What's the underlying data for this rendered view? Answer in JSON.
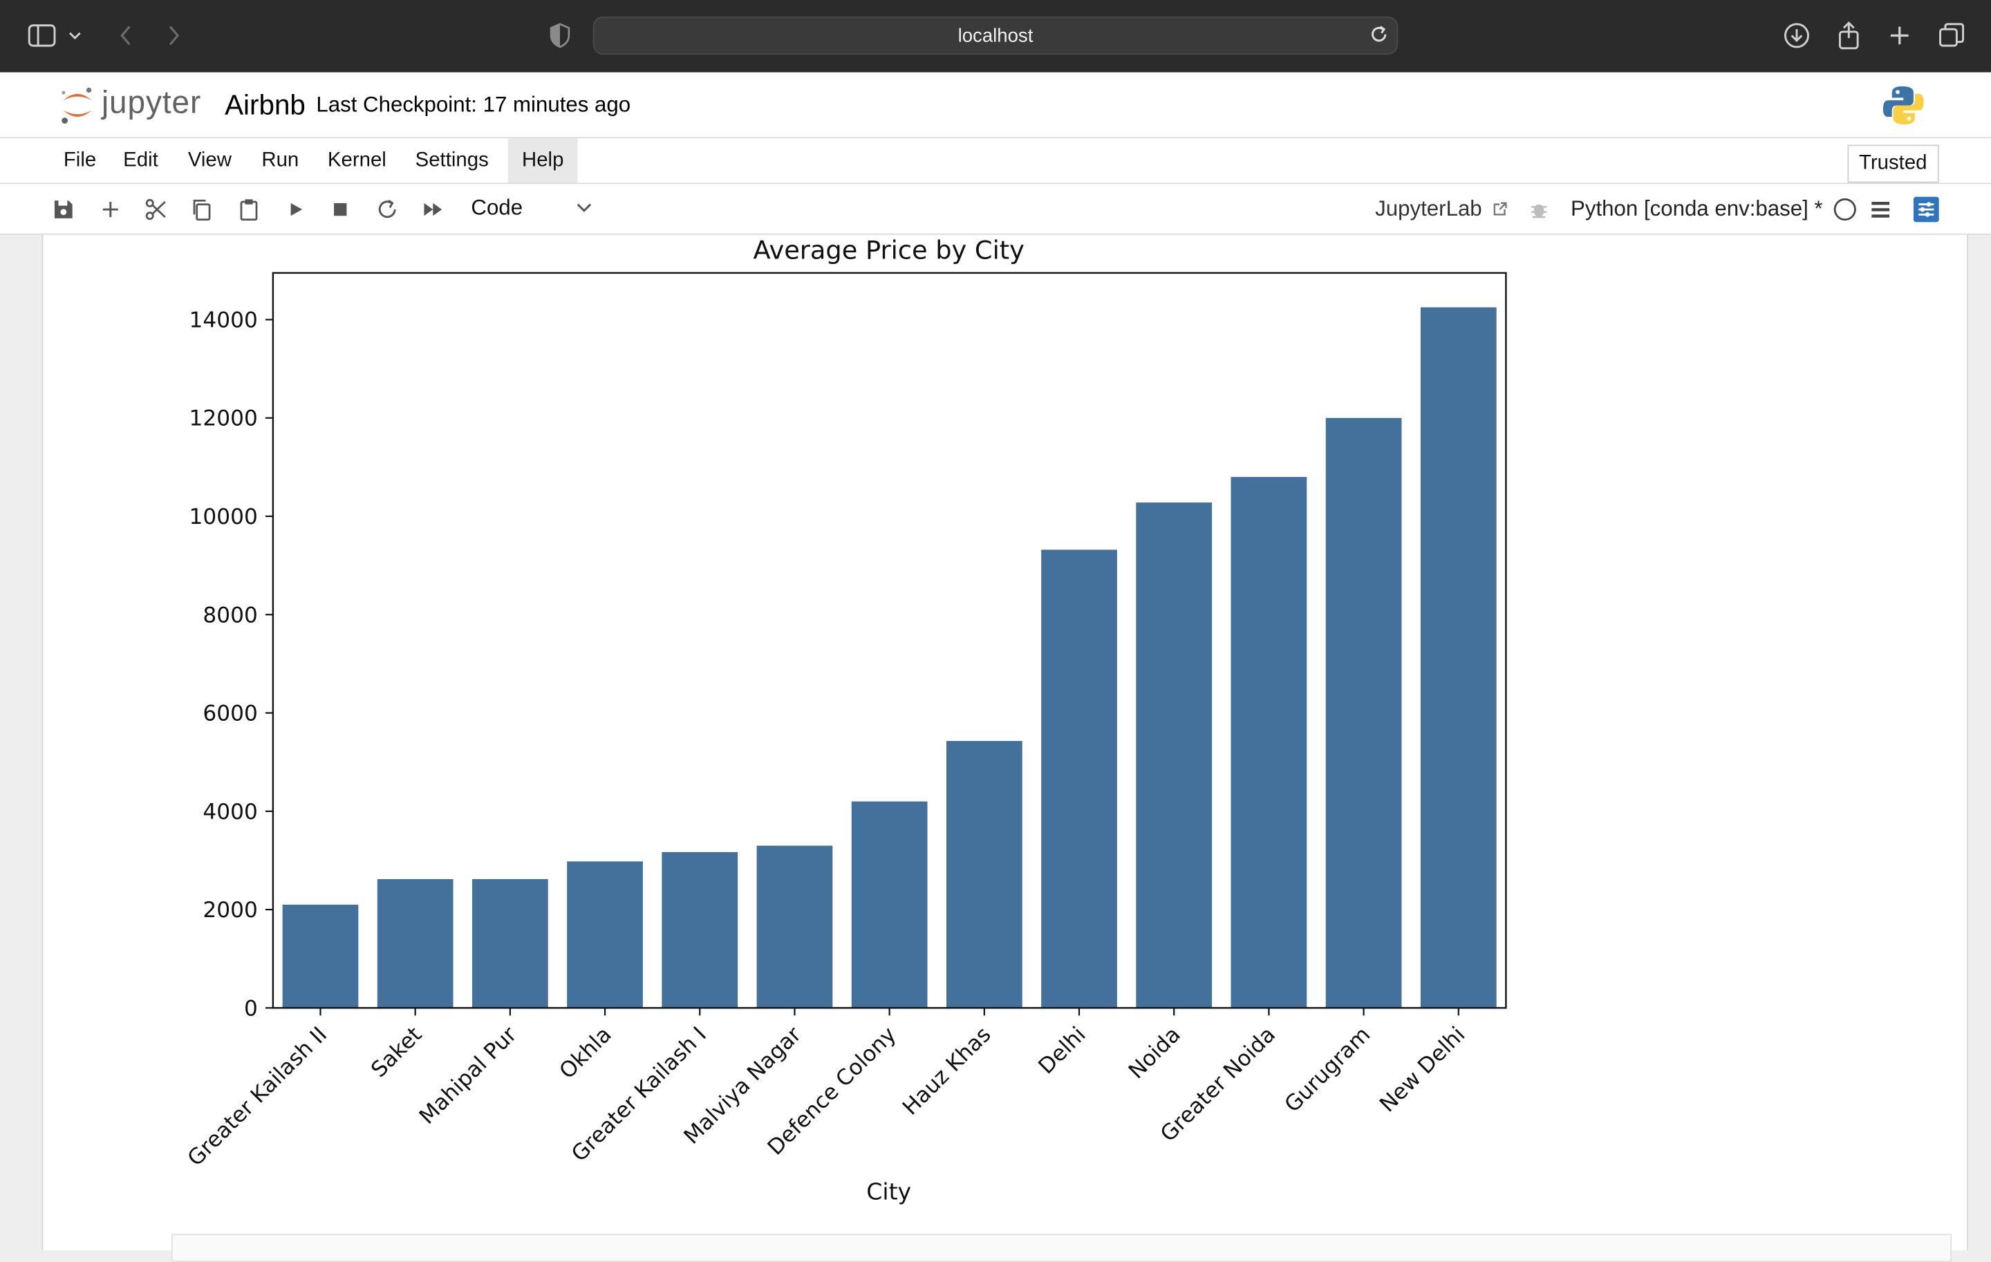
{
  "browser": {
    "url": "localhost",
    "icons": [
      "sidebar-icon",
      "chevron-down-icon",
      "back-arrow-icon",
      "forward-arrow-icon",
      "privacy-shield-icon",
      "reload-icon",
      "download-icon",
      "share-icon",
      "new-tab-icon",
      "tab-overview-icon"
    ]
  },
  "header": {
    "logo_text": "jupyter",
    "notebook_title": "Airbnb",
    "checkpoint": "Last Checkpoint: 17 minutes ago"
  },
  "menu": {
    "items": [
      "File",
      "Edit",
      "View",
      "Run",
      "Kernel",
      "Settings",
      "Help"
    ],
    "active": "Help",
    "trusted_label": "Trusted"
  },
  "toolbar": {
    "cell_type": "Code",
    "jupyterlab_label": "JupyterLab",
    "kernel_label": "Python [conda env:base] *",
    "icons": [
      "save-icon",
      "add-cell-icon",
      "cut-icon",
      "copy-icon",
      "paste-icon",
      "run-icon",
      "stop-icon",
      "restart-icon",
      "fast-forward-icon"
    ]
  },
  "chart_data": {
    "type": "bar",
    "title": "Average Price by City",
    "xlabel": "City",
    "ylabel": "",
    "categories": [
      "Greater Kailash II",
      "Saket",
      "Mahipal Pur",
      "Okhla",
      "Greater Kailash I",
      "Malviya Nagar",
      "Defence Colony",
      "Hauz Khas",
      "Delhi",
      "Noida",
      "Greater Noida",
      "Gurugram",
      "New Delhi"
    ],
    "values": [
      2100,
      2620,
      2620,
      2980,
      3170,
      3300,
      4200,
      5430,
      9320,
      10280,
      10800,
      12000,
      14250
    ],
    "yticks": [
      "0",
      "2000",
      "4000",
      "6000",
      "8000",
      "10000",
      "12000",
      "14000"
    ],
    "ylim": [
      0,
      14950
    ],
    "bar_color": "#44719b",
    "grid": false
  }
}
